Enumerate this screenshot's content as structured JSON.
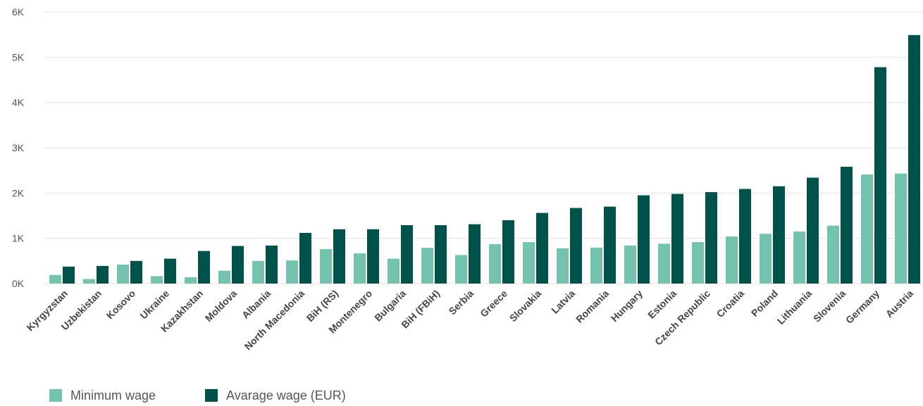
{
  "chart_data": {
    "type": "bar",
    "categories": [
      "Kyrgyzstan",
      "Uzbekistan",
      "Kosovo",
      "Ukraine",
      "Kazakhstan",
      "Moldova",
      "Albania",
      "North Macedonia",
      "BiH (RS)",
      "Montenegro",
      "Bulgaria",
      "BiH (FBiH)",
      "Serbia",
      "Greece",
      "Slovakia",
      "Latvia",
      "Romania",
      "Hungary",
      "Estonia",
      "Czech Republic",
      "Croatia",
      "Poland",
      "Lithuania",
      "Slovenia",
      "Germany",
      "Austria"
    ],
    "series": [
      {
        "name": "Minimum wage",
        "color": "#74c3af",
        "values": [
          190,
          100,
          420,
          165,
          140,
          285,
          500,
          510,
          760,
          670,
          550,
          790,
          630,
          870,
          915,
          780,
          795,
          840,
          880,
          915,
          1040,
          1100,
          1150,
          1280,
          2410,
          2430
        ]
      },
      {
        "name": "Avarage wage (EUR)",
        "color": "#00524a",
        "values": [
          375,
          390,
          500,
          550,
          720,
          830,
          840,
          1120,
          1200,
          1200,
          1290,
          1290,
          1310,
          1400,
          1560,
          1670,
          1700,
          1950,
          1980,
          2020,
          2090,
          2150,
          2340,
          2580,
          4780,
          5490
        ]
      }
    ],
    "yticks": [
      "0K",
      "1K",
      "2K",
      "3K",
      "4K",
      "5K",
      "6K"
    ],
    "ylim": [
      0,
      6000
    ],
    "grid": true,
    "legend_position": "bottom-left"
  }
}
